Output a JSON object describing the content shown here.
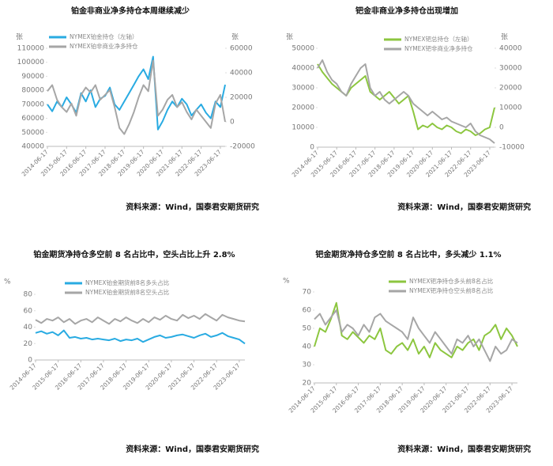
{
  "chart_data": [
    {
      "type": "line",
      "title": "铂金非商业净多持仓本周继续减少",
      "categories": [
        "2014-06-17",
        null,
        null,
        null,
        "2015-06-17",
        null,
        null,
        null,
        "2016-06-17",
        null,
        null,
        null,
        "2017-06-17",
        null,
        null,
        null,
        "2018-06-17",
        null,
        null,
        null,
        "2019-06-17",
        null,
        null,
        null,
        "2020-06-17",
        null,
        null,
        null,
        "2021-06-17",
        null,
        null,
        null,
        "2022-06-17",
        null,
        null,
        null,
        "2023-06-17",
        null
      ],
      "ylabel": "张",
      "y2label": "张",
      "ylim": [
        40000,
        110000
      ],
      "yticks": [
        40000,
        50000,
        60000,
        70000,
        80000,
        90000,
        100000,
        110000
      ],
      "y2lim": [
        -20000,
        60000
      ],
      "y2ticks": [
        -20000,
        0,
        20000,
        40000,
        60000
      ],
      "series": [
        {
          "name": "NYMEX铂金持仓（左轴）",
          "color": "#29abe2",
          "axis": "y",
          "values": [
            70000,
            65000,
            72000,
            68000,
            75000,
            70000,
            64000,
            78000,
            72000,
            80000,
            68000,
            74000,
            76000,
            82000,
            70000,
            66000,
            72000,
            78000,
            84000,
            90000,
            95000,
            88000,
            104000,
            52000,
            58000,
            66000,
            72000,
            68000,
            74000,
            70000,
            62000,
            66000,
            70000,
            64000,
            60000,
            72000,
            68000,
            84000
          ]
        },
        {
          "name": "NYMEX铂非商业净多持仓",
          "color": "#a6a6a6",
          "axis": "y2",
          "values": [
            25000,
            30000,
            18000,
            12000,
            8000,
            15000,
            5000,
            22000,
            28000,
            24000,
            30000,
            18000,
            22000,
            26000,
            12000,
            -5000,
            -10000,
            -2000,
            8000,
            20000,
            30000,
            25000,
            50000,
            5000,
            10000,
            18000,
            22000,
            12000,
            16000,
            8000,
            2000,
            10000,
            5000,
            0,
            -5000,
            15000,
            22000,
            0
          ]
        }
      ],
      "source": "资料来源：Wind，国泰君安期货研究"
    },
    {
      "type": "line",
      "title": "钯金非商业净多持仓出现增加",
      "categories": [
        "2014-06-17",
        null,
        null,
        null,
        "2015-06-17",
        null,
        null,
        null,
        "2016-06-17",
        null,
        null,
        null,
        "2017-06-17",
        null,
        null,
        null,
        "2018-06-17",
        null,
        null,
        null,
        "2019-06-17",
        null,
        null,
        null,
        "2020-06-17",
        null,
        null,
        null,
        "2021-06-17",
        null,
        null,
        null,
        "2022-06-17",
        null,
        null,
        null,
        "2023-06-17",
        null
      ],
      "ylabel": "张",
      "y2label": "张",
      "ylim": [
        0,
        50000
      ],
      "yticks": [
        0,
        10000,
        20000,
        30000,
        40000,
        50000
      ],
      "y2lim": [
        -10000,
        40000
      ],
      "y2ticks": [
        -10000,
        0,
        10000,
        20000,
        30000,
        40000
      ],
      "series": [
        {
          "name": "NYMEX钯总持仓（左轴）",
          "color": "#8cc63f",
          "axis": "y",
          "values": [
            42000,
            38000,
            35000,
            32000,
            30000,
            28000,
            26000,
            30000,
            32000,
            34000,
            36000,
            28000,
            26000,
            24000,
            26000,
            28000,
            25000,
            22000,
            24000,
            26000,
            18000,
            9000,
            11000,
            10000,
            12000,
            10000,
            9000,
            11000,
            10000,
            8000,
            7000,
            9000,
            8000,
            6000,
            7000,
            9000,
            10000,
            20000
          ]
        },
        {
          "name": "NYMEX钯非商业净多持仓",
          "color": "#a6a6a6",
          "axis": "y2",
          "values": [
            30000,
            34000,
            28000,
            24000,
            22000,
            18000,
            16000,
            22000,
            26000,
            30000,
            32000,
            20000,
            16000,
            18000,
            14000,
            12000,
            14000,
            16000,
            18000,
            16000,
            12000,
            10000,
            8000,
            6000,
            8000,
            6000,
            4000,
            5000,
            3000,
            2000,
            1000,
            0,
            2000,
            -2000,
            -4000,
            -5000,
            -6000,
            -8000
          ]
        }
      ],
      "source": "资料来源：Wind，国泰君安期货研究"
    },
    {
      "type": "line",
      "title": "铂金期货净持仓多空前 8 名占比中，空头占比上升 2.8%",
      "categories": [
        "2014-06-17",
        null,
        null,
        null,
        "2015-06-17",
        null,
        null,
        null,
        "2016-06-17",
        null,
        null,
        null,
        "2017-06-17",
        null,
        null,
        null,
        "2018-06-17",
        null,
        null,
        null,
        "2019-06-17",
        null,
        null,
        null,
        "2020-06-17",
        null,
        null,
        null,
        "2021-06-17",
        null,
        null,
        null,
        "2022-06-17",
        null,
        null,
        null,
        "2023-06-17",
        null
      ],
      "ylabel": "%",
      "ylim": [
        0,
        80
      ],
      "yticks": [
        0,
        20,
        40,
        60,
        80
      ],
      "series": [
        {
          "name": "NYMEX铂金期货前8名多头占比",
          "color": "#29abe2",
          "axis": "y",
          "values": [
            33,
            35,
            32,
            34,
            30,
            36,
            27,
            28,
            26,
            27,
            25,
            26,
            25,
            24,
            26,
            23,
            25,
            24,
            26,
            22,
            25,
            28,
            30,
            27,
            28,
            30,
            31,
            29,
            27,
            30,
            32,
            28,
            30,
            33,
            29,
            27,
            25,
            20
          ]
        },
        {
          "name": "NYMEX铂金期货前8名空头占比",
          "color": "#a6a6a6",
          "axis": "y",
          "values": [
            49,
            45,
            50,
            48,
            52,
            46,
            50,
            44,
            48,
            50,
            46,
            52,
            48,
            44,
            50,
            47,
            52,
            48,
            45,
            50,
            46,
            52,
            49,
            54,
            50,
            48,
            55,
            51,
            54,
            50,
            56,
            52,
            48,
            55,
            52,
            50,
            48,
            47
          ]
        }
      ],
      "source": "资料来源：Wind，国泰君安期货研究"
    },
    {
      "type": "line",
      "title": "钯金期货净持仓多空前 8 名占比中，多头减少 1.1%",
      "categories": [
        "2014-06-17",
        null,
        null,
        null,
        "2015-06-17",
        null,
        null,
        null,
        "2016-06-17",
        null,
        null,
        null,
        "2017-06-17",
        null,
        null,
        null,
        "2018-06-17",
        null,
        null,
        null,
        "2019-06-17",
        null,
        null,
        null,
        "2020-06-17",
        null,
        null,
        null,
        "2021-06-17",
        null,
        null,
        null,
        "2022-06-17",
        null,
        null,
        null,
        "2023-06-17",
        null
      ],
      "ylabel": "%",
      "ylim": [
        20,
        70
      ],
      "yticks": [
        20,
        30,
        40,
        50,
        60,
        70
      ],
      "series": [
        {
          "name": "NYMEX钯净持仓多头前8名占比",
          "color": "#8cc63f",
          "axis": "y",
          "values": [
            40,
            50,
            48,
            55,
            64,
            46,
            44,
            48,
            45,
            42,
            46,
            44,
            50,
            38,
            36,
            40,
            42,
            38,
            44,
            36,
            40,
            34,
            42,
            38,
            36,
            34,
            40,
            38,
            42,
            44,
            38,
            46,
            48,
            52,
            44,
            50,
            46,
            40
          ]
        },
        {
          "name": "NYMEX钯净持仓空头前8名占比",
          "color": "#a6a6a6",
          "axis": "y",
          "values": [
            55,
            58,
            52,
            56,
            60,
            48,
            52,
            50,
            46,
            52,
            48,
            56,
            58,
            54,
            52,
            50,
            48,
            44,
            56,
            50,
            46,
            42,
            48,
            44,
            40,
            36,
            44,
            42,
            46,
            40,
            44,
            38,
            32,
            40,
            36,
            38,
            44,
            42
          ]
        }
      ],
      "source": "资料来源：Wind，国泰君安期货研究"
    }
  ]
}
